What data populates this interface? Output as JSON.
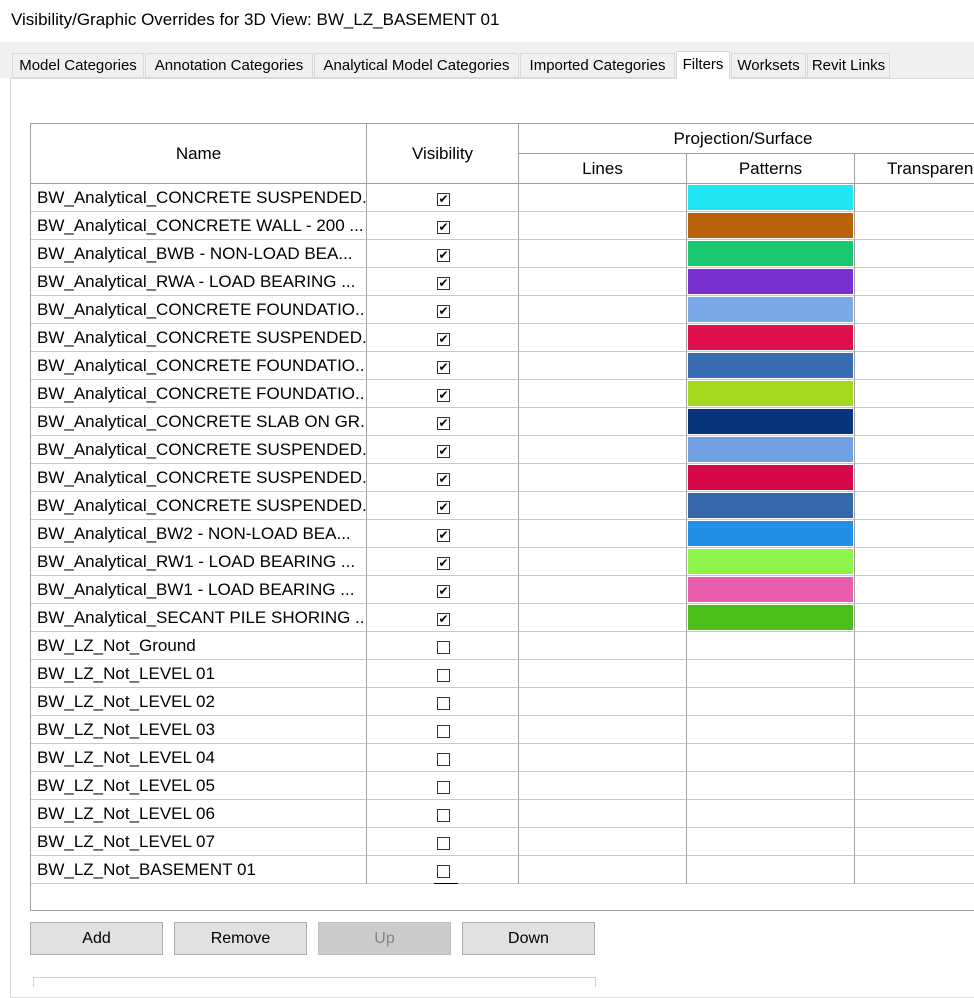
{
  "window": {
    "title": "Visibility/Graphic Overrides for 3D View: BW_LZ_BASEMENT 01"
  },
  "tabs": [
    {
      "label": "Model Categories",
      "active": false
    },
    {
      "label": "Annotation Categories",
      "active": false
    },
    {
      "label": "Analytical Model Categories",
      "active": false
    },
    {
      "label": "Imported Categories",
      "active": false
    },
    {
      "label": "Filters",
      "active": true
    },
    {
      "label": "Worksets",
      "active": false
    },
    {
      "label": "Revit Links",
      "active": false
    }
  ],
  "table": {
    "headers": {
      "name": "Name",
      "visibility": "Visibility",
      "group": "Projection/Surface",
      "lines": "Lines",
      "patterns": "Patterns",
      "transparency": "Transparency"
    },
    "rows": [
      {
        "name": "BW_Analytical_CONCRETE SUSPENDED...",
        "visible": true,
        "pattern_color": "#1fe5f5"
      },
      {
        "name": "BW_Analytical_CONCRETE WALL - 200 ...",
        "visible": true,
        "pattern_color": "#b8620a"
      },
      {
        "name": "BW_Analytical_BWB -  NON-LOAD BEA...",
        "visible": true,
        "pattern_color": "#1bc671"
      },
      {
        "name": "BW_Analytical_RWA - LOAD BEARING ...",
        "visible": true,
        "pattern_color": "#7a2fd3"
      },
      {
        "name": "BW_Analytical_CONCRETE FOUNDATIO...",
        "visible": true,
        "pattern_color": "#7aa8e8"
      },
      {
        "name": "BW_Analytical_CONCRETE SUSPENDED...",
        "visible": true,
        "pattern_color": "#e0104e"
      },
      {
        "name": "BW_Analytical_CONCRETE FOUNDATIO...",
        "visible": true,
        "pattern_color": "#3a6cb4"
      },
      {
        "name": "BW_Analytical_CONCRETE FOUNDATIO...",
        "visible": true,
        "pattern_color": "#a3d81d"
      },
      {
        "name": "BW_Analytical_CONCRETE SLAB ON GR...",
        "visible": true,
        "pattern_color": "#07347a"
      },
      {
        "name": "BW_Analytical_CONCRETE SUSPENDED...",
        "visible": true,
        "pattern_color": "#6fa0e2"
      },
      {
        "name": "BW_Analytical_CONCRETE SUSPENDED...",
        "visible": true,
        "pattern_color": "#d6084a"
      },
      {
        "name": "BW_Analytical_CONCRETE SUSPENDED...",
        "visible": true,
        "pattern_color": "#3567aa"
      },
      {
        "name": "BW_Analytical_BW2 -  NON-LOAD BEA...",
        "visible": true,
        "pattern_color": "#2290e6"
      },
      {
        "name": "BW_Analytical_RW1 - LOAD BEARING ...",
        "visible": true,
        "pattern_color": "#8ef44a"
      },
      {
        "name": "BW_Analytical_BW1 - LOAD BEARING ...",
        "visible": true,
        "pattern_color": "#ea5cac"
      },
      {
        "name": "BW_Analytical_SECANT PILE SHORING ...",
        "visible": true,
        "pattern_color": "#4cbe18"
      },
      {
        "name": "BW_LZ_Not_Ground",
        "visible": false,
        "pattern_color": ""
      },
      {
        "name": "BW_LZ_Not_LEVEL 01",
        "visible": false,
        "pattern_color": ""
      },
      {
        "name": "BW_LZ_Not_LEVEL 02",
        "visible": false,
        "pattern_color": ""
      },
      {
        "name": "BW_LZ_Not_LEVEL 03",
        "visible": false,
        "pattern_color": ""
      },
      {
        "name": "BW_LZ_Not_LEVEL 04",
        "visible": false,
        "pattern_color": ""
      },
      {
        "name": "BW_LZ_Not_LEVEL 05",
        "visible": false,
        "pattern_color": ""
      },
      {
        "name": "BW_LZ_Not_LEVEL 06",
        "visible": false,
        "pattern_color": ""
      },
      {
        "name": "BW_LZ_Not_LEVEL 07",
        "visible": false,
        "pattern_color": ""
      },
      {
        "name": "BW_LZ_Not_BASEMENT 01",
        "visible": false,
        "pattern_color": ""
      }
    ]
  },
  "buttons": {
    "add": "Add",
    "remove": "Remove",
    "up": "Up",
    "down": "Down",
    "up_disabled": true
  }
}
